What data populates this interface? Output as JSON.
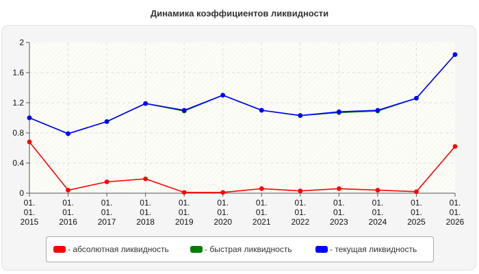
{
  "chart_data": {
    "type": "line",
    "title": "Динамика коэффициентов ликвидности",
    "xlabel": "",
    "ylabel": "",
    "categories": [
      [
        "01.",
        "01.",
        "2015"
      ],
      [
        "01.",
        "01.",
        "2016"
      ],
      [
        "01.",
        "01.",
        "2017"
      ],
      [
        "01.",
        "01.",
        "2018"
      ],
      [
        "01.",
        "01.",
        "2019"
      ],
      [
        "01.",
        "01.",
        "2020"
      ],
      [
        "01.",
        "01.",
        "2021"
      ],
      [
        "01.",
        "01.",
        "2022"
      ],
      [
        "01.",
        "01.",
        "2023"
      ],
      [
        "01.",
        "01.",
        "2024"
      ],
      [
        "01.",
        "01.",
        "2025"
      ],
      [
        "01.",
        "01.",
        "2026"
      ]
    ],
    "ylim": [
      0,
      2
    ],
    "yticks": [
      "0",
      "0.4",
      "0.8",
      "1.2",
      "1.6",
      "2"
    ],
    "grid": true,
    "legend_position": "bottom",
    "series": [
      {
        "name": "- абсолютная ликвидность",
        "color": "#ff0000",
        "values": [
          0.68,
          0.04,
          0.15,
          0.19,
          0.01,
          0.01,
          0.06,
          0.03,
          0.06,
          0.04,
          0.02,
          0.62
        ]
      },
      {
        "name": "- быстрая ликвидность",
        "color": "#008000",
        "values": [
          1.0,
          0.79,
          0.95,
          1.19,
          1.09,
          1.3,
          1.1,
          1.03,
          1.07,
          1.09,
          1.26,
          1.84
        ]
      },
      {
        "name": "- текущая ликвидность",
        "color": "#0000ff",
        "values": [
          1.0,
          0.79,
          0.95,
          1.19,
          1.1,
          1.3,
          1.1,
          1.03,
          1.08,
          1.1,
          1.26,
          1.84
        ]
      }
    ]
  }
}
